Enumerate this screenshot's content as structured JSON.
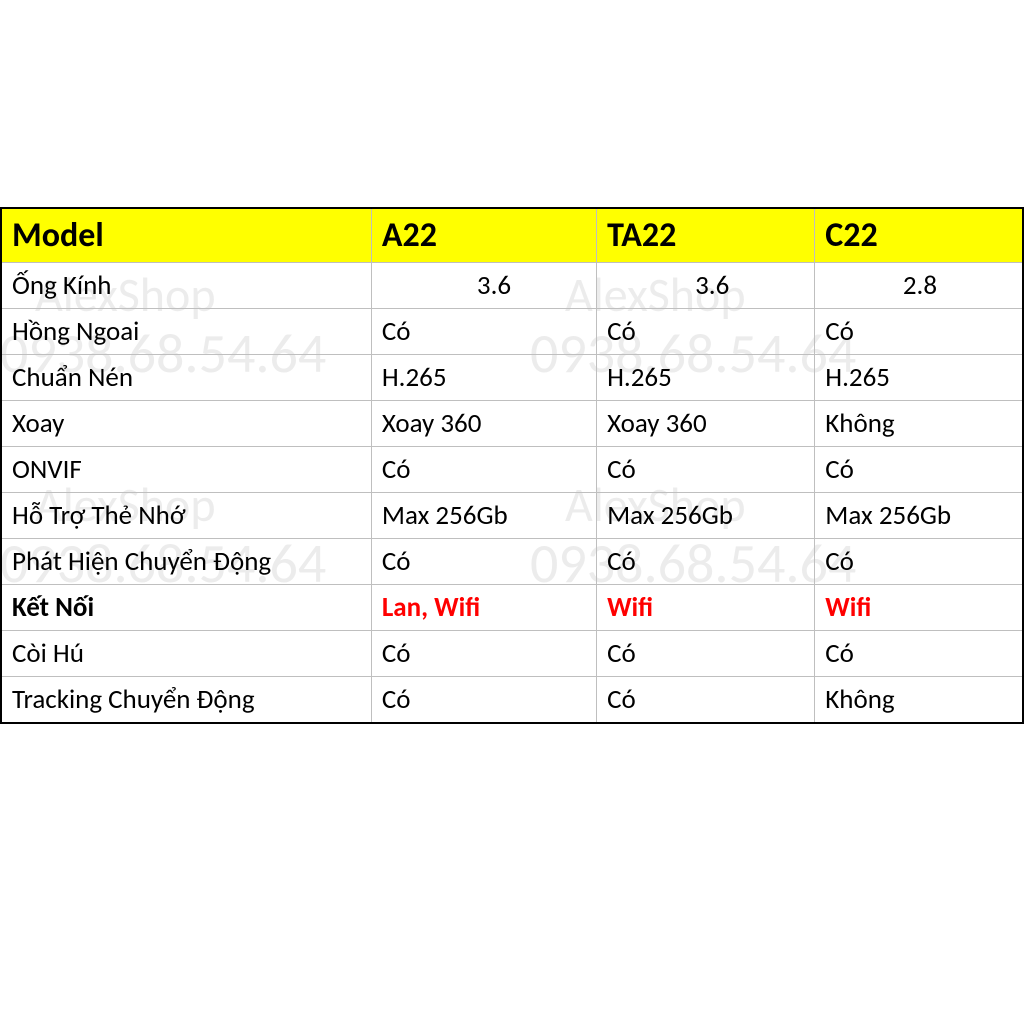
{
  "watermarks": {
    "brand": "AlexShop",
    "phone": "0938.68.54.64"
  },
  "table": {
    "headers": [
      "Model",
      "A22",
      "TA22",
      "C22"
    ],
    "header_bg_color": "#ffff00",
    "header_font_size": 34,
    "cell_font_size": 27,
    "border_color": "#bfbfbf",
    "outer_border_color": "#000000",
    "rows": [
      {
        "label": "Ống Kính",
        "cells": [
          {
            "value": "3.6",
            "numeric": true
          },
          {
            "value": "3.6",
            "numeric": true
          },
          {
            "value": "2.8",
            "numeric": true
          }
        ],
        "bold_label": false
      },
      {
        "label": "Hồng Ngoai",
        "cells": [
          {
            "value": "Có"
          },
          {
            "value": "Có"
          },
          {
            "value": "Có"
          }
        ],
        "bold_label": false
      },
      {
        "label": "Chuẩn Nén",
        "cells": [
          {
            "value": "H.265"
          },
          {
            "value": "H.265"
          },
          {
            "value": "H.265"
          }
        ],
        "bold_label": false
      },
      {
        "label": "Xoay",
        "cells": [
          {
            "value": "Xoay 360"
          },
          {
            "value": "Xoay 360"
          },
          {
            "value": "Không"
          }
        ],
        "bold_label": false
      },
      {
        "label": "ONVIF",
        "cells": [
          {
            "value": "Có"
          },
          {
            "value": "Có"
          },
          {
            "value": "Có"
          }
        ],
        "bold_label": false
      },
      {
        "label": "Hỗ Trợ Thẻ Nhớ",
        "cells": [
          {
            "value": "Max 256Gb"
          },
          {
            "value": "Max 256Gb"
          },
          {
            "value": "Max 256Gb"
          }
        ],
        "bold_label": false
      },
      {
        "label": "Phát Hiện Chuyển Động",
        "cells": [
          {
            "value": "Có"
          },
          {
            "value": "Có"
          },
          {
            "value": "Có"
          }
        ],
        "bold_label": false
      },
      {
        "label": "Kết Nối",
        "cells": [
          {
            "value": "Lan, Wifi",
            "red": true
          },
          {
            "value": "Wifi",
            "red": true
          },
          {
            "value": "Wifi",
            "red": true
          }
        ],
        "bold_label": true
      },
      {
        "label": "Còi Hú",
        "cells": [
          {
            "value": "Có"
          },
          {
            "value": "Có"
          },
          {
            "value": "Có"
          }
        ],
        "bold_label": false
      },
      {
        "label": "Tracking Chuyển Động",
        "cells": [
          {
            "value": "Có"
          },
          {
            "value": "Có"
          },
          {
            "value": "Không"
          }
        ],
        "bold_label": false
      }
    ]
  }
}
